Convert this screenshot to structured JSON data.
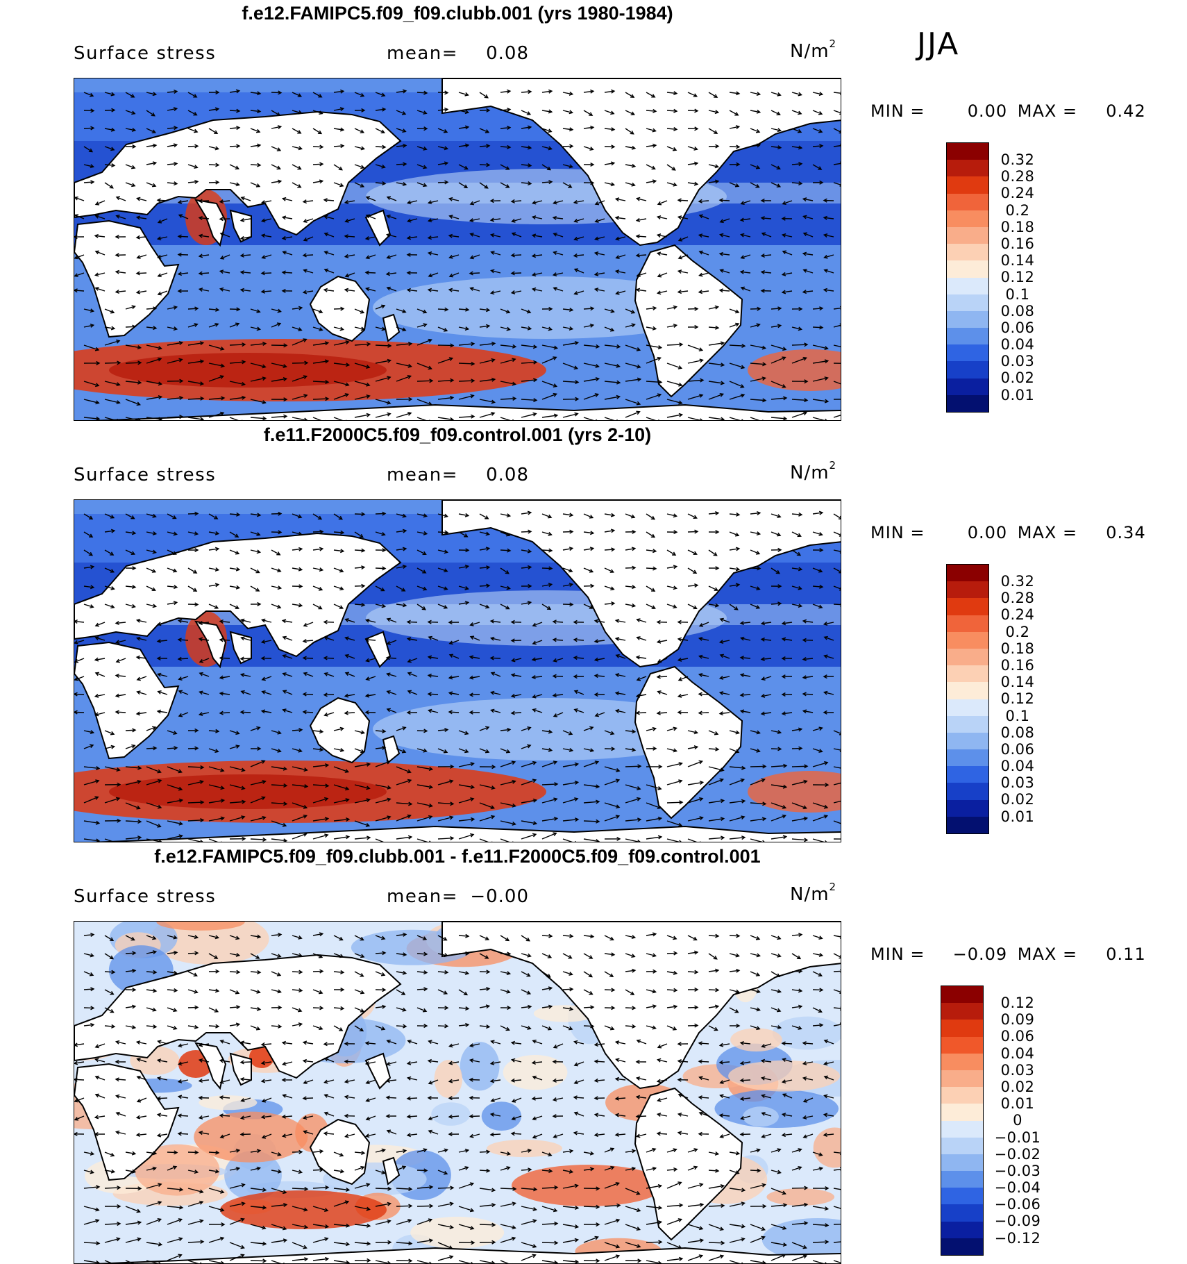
{
  "season": "JJA",
  "panels": [
    {
      "title": "f.e12.FAMIPC5.f09_f09.clubb.001 (yrs 1980-1984)",
      "variable": "Surface stress",
      "mean_label": "mean=",
      "mean_value": "0.08",
      "units": "N/m",
      "units_sup": "2",
      "min_label": "MIN =",
      "min_value": "0.00",
      "max_label": "MAX =",
      "max_value": "0.42",
      "colorbar_labels": [
        "0.32",
        "0.28",
        "0.24",
        "0.2",
        "0.18",
        "0.16",
        "0.14",
        "0.12",
        "0.1",
        "0.08",
        "0.06",
        "0.04",
        "0.03",
        "0.02",
        "0.01"
      ],
      "colorbar_colors": [
        "#8b0000",
        "#b71c0c",
        "#e03a10",
        "#f0643a",
        "#f88d60",
        "#f9ad8a",
        "#fcd0b4",
        "#fdecd8",
        "#dbe9fb",
        "#b9d3f7",
        "#8fb6f1",
        "#5d90ea",
        "#2f64e3",
        "#1740c8",
        "#0a1fa0",
        "#031070"
      ]
    },
    {
      "title": "f.e11.F2000C5.f09_f09.control.001 (yrs 2-10)",
      "variable": "Surface stress",
      "mean_label": "mean=",
      "mean_value": "0.08",
      "units": "N/m",
      "units_sup": "2",
      "min_label": "MIN =",
      "min_value": "0.00",
      "max_label": "MAX =",
      "max_value": "0.34",
      "colorbar_labels": [
        "0.32",
        "0.28",
        "0.24",
        "0.2",
        "0.18",
        "0.16",
        "0.14",
        "0.12",
        "0.1",
        "0.08",
        "0.06",
        "0.04",
        "0.03",
        "0.02",
        "0.01"
      ],
      "colorbar_colors": [
        "#8b0000",
        "#b71c0c",
        "#e03a10",
        "#f0643a",
        "#f88d60",
        "#f9ad8a",
        "#fcd0b4",
        "#fdecd8",
        "#dbe9fb",
        "#b9d3f7",
        "#8fb6f1",
        "#5d90ea",
        "#2f64e3",
        "#1740c8",
        "#0a1fa0",
        "#031070"
      ]
    },
    {
      "title": "f.e12.FAMIPC5.f09_f09.clubb.001 - f.e11.F2000C5.f09_f09.control.001",
      "variable": "Surface stress",
      "mean_label": "mean=",
      "mean_value": "−0.00",
      "units": "N/m",
      "units_sup": "2",
      "min_label": "MIN =",
      "min_value": "−0.09",
      "max_label": "MAX =",
      "max_value": "0.11",
      "colorbar_labels": [
        "0.12",
        "0.09",
        "0.06",
        "0.04",
        "0.03",
        "0.02",
        "0.01",
        "0",
        "−0.01",
        "−0.02",
        "−0.03",
        "−0.04",
        "−0.06",
        "−0.09",
        "−0.12"
      ],
      "colorbar_colors": [
        "#8b0000",
        "#b71c0c",
        "#e03a10",
        "#f0582a",
        "#f88d60",
        "#f9ad8a",
        "#fcd0b4",
        "#fdecd8",
        "#dbe9fb",
        "#b9d3f7",
        "#8fb6f1",
        "#5d90ea",
        "#2f64e3",
        "#1740c8",
        "#0a1fa0",
        "#031070"
      ]
    }
  ]
}
